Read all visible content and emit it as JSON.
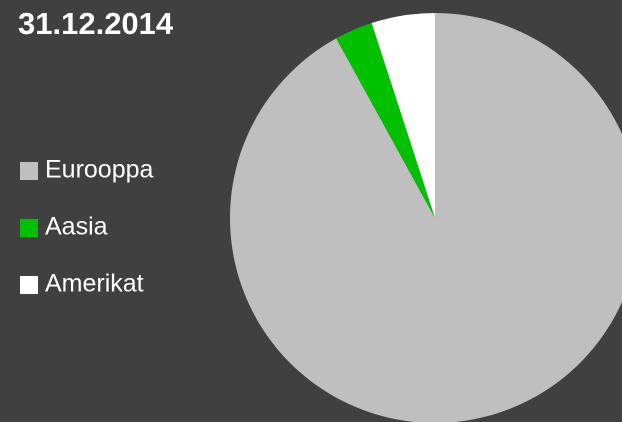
{
  "chart_data": {
    "type": "pie",
    "title": "31.12.2014",
    "categories": [
      "Eurooppa",
      "Aasia",
      "Amerikat"
    ],
    "values": [
      92,
      3,
      5
    ],
    "colors": [
      "#bfbfbf",
      "#00c000",
      "#ffffff"
    ],
    "legend": "left"
  }
}
